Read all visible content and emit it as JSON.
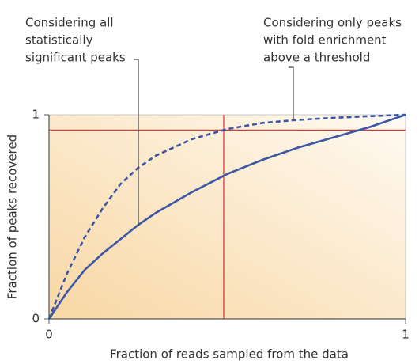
{
  "chart_data": {
    "type": "line",
    "xlabel": "Fraction of reads sampled from the data",
    "ylabel": "Fraction of peaks recovered",
    "x": [
      0,
      0.05,
      0.1,
      0.15,
      0.2,
      0.25,
      0.3,
      0.4,
      0.5,
      0.6,
      0.7,
      0.8,
      0.9,
      1
    ],
    "series": [
      {
        "color": "#3b57a5",
        "dashed": false,
        "values": [
          0,
          0.13,
          0.24,
          0.32,
          0.39,
          0.46,
          0.52,
          0.62,
          0.71,
          0.78,
          0.84,
          0.89,
          0.94,
          1
        ]
      },
      {
        "color": "#3b57a5",
        "dashed": true,
        "values": [
          0,
          0.22,
          0.4,
          0.54,
          0.66,
          0.74,
          0.8,
          0.88,
          0.93,
          0.96,
          0.975,
          0.985,
          0.993,
          1
        ]
      }
    ],
    "xlim": [
      0,
      1
    ],
    "ylim": [
      0,
      1
    ],
    "xticks": [
      0,
      1
    ],
    "yticks": [
      0,
      1
    ],
    "reference_x": 0.49,
    "reference_y": 0.925,
    "reference_color": "#d93a3f",
    "annotations": [
      [
        "Considering all",
        "statistically",
        "significant peaks"
      ],
      [
        "Considering only peaks",
        "with fold enrichment",
        "above a threshold"
      ]
    ]
  }
}
